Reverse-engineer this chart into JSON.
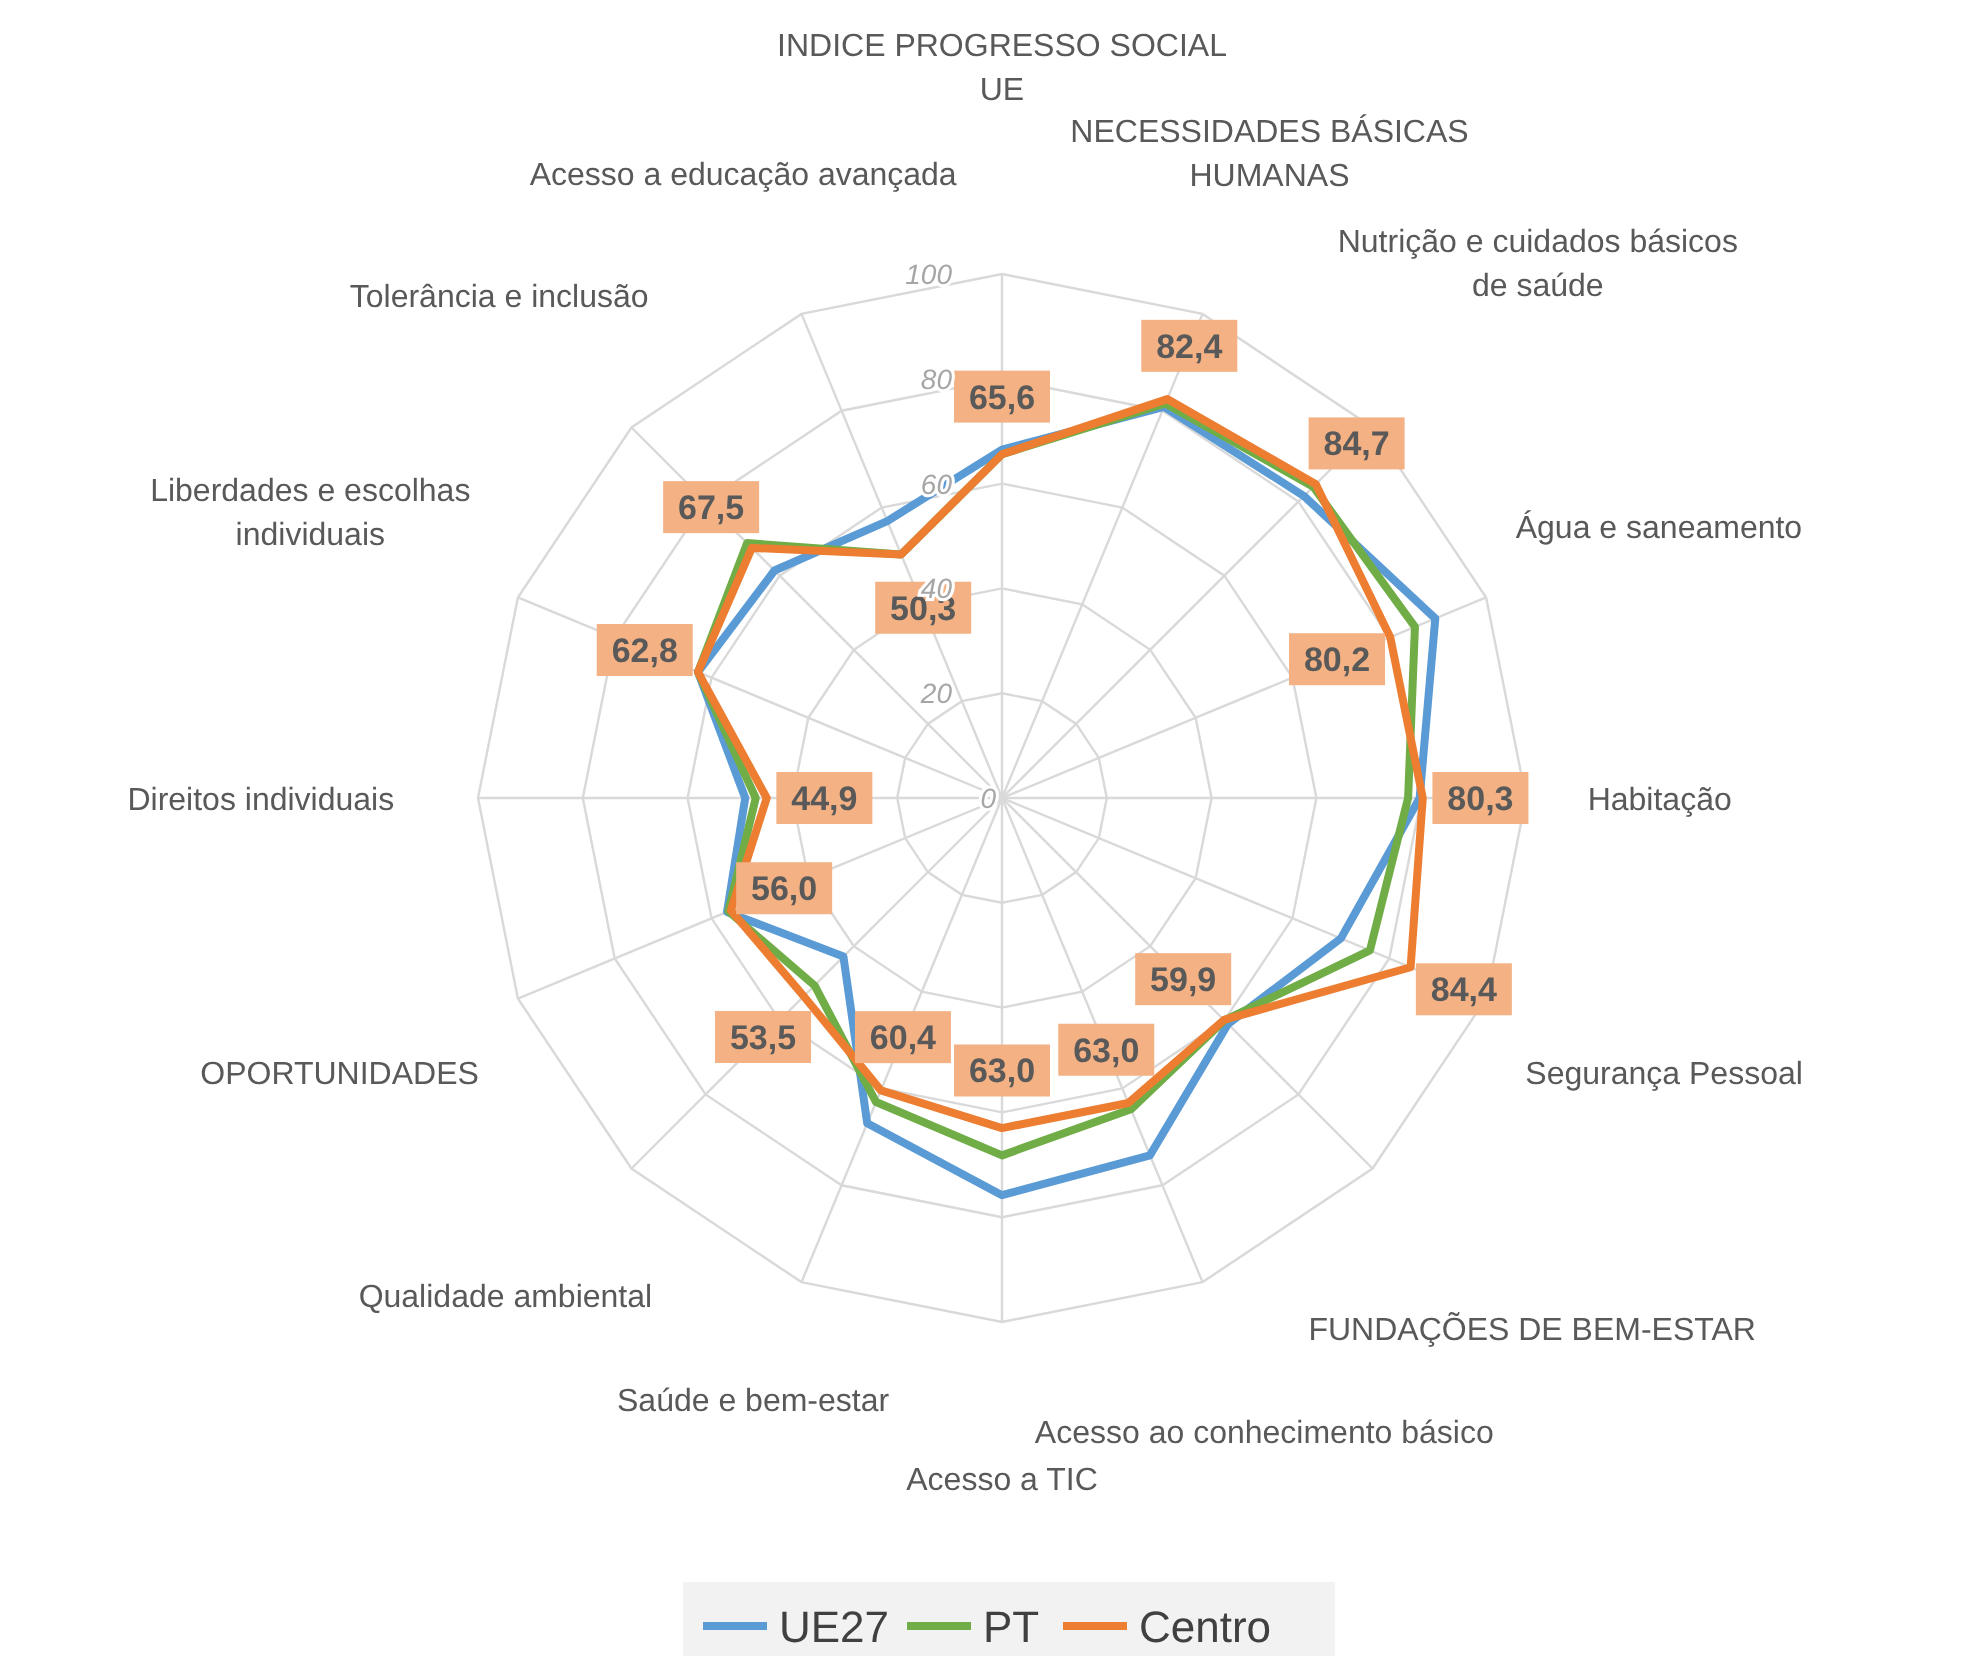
{
  "chart_data": {
    "type": "radar",
    "categories": [
      "INDICE PROGRESSO SOCIAL\nUE",
      "NECESSIDADES BÁSICAS\nHUMANAS",
      "Nutrição e cuidados básicos\nde saúde",
      "Água e saneamento",
      "Habitação",
      "Segurança Pessoal",
      "FUNDAÇÕES DE BEM-ESTAR",
      "Acesso ao conhecimento básico",
      "Acesso a TIC",
      "Saúde e bem-estar",
      "Qualidade ambiental",
      "OPORTUNIDADES",
      "Direitos individuais",
      "Liberdades e escolhas\nindividuais",
      "Tolerância e inclusão",
      "Acesso a educação avançada"
    ],
    "series": [
      {
        "name": "UE27",
        "color": "#5b9bd5",
        "values": [
          66.5,
          80.8,
          81.5,
          89.5,
          79.7,
          70,
          61,
          73.8,
          75.8,
          67.2,
          42.8,
          56.8,
          49,
          62.8,
          61.4,
          57.2
        ]
      },
      {
        "name": "PT",
        "color": "#70ad47",
        "values": [
          65.6,
          81.5,
          84,
          85.3,
          77.5,
          76,
          60,
          64.3,
          68.2,
          62.8,
          50.6,
          56.5,
          47,
          62.8,
          68.8,
          50.3
        ]
      },
      {
        "name": "Centro",
        "color": "#ed7d31",
        "values": [
          65.6,
          82.4,
          84.7,
          80.2,
          80.3,
          84.4,
          59.9,
          63.0,
          63.0,
          60.4,
          53.5,
          56.0,
          44.9,
          62.8,
          67.5,
          50.3
        ],
        "value_labels": [
          "65,6",
          "82,4",
          "84,7",
          "80,2",
          "80,3",
          "84,4",
          "59,9",
          "63,0",
          "63,0",
          "60,4",
          "53,5",
          "56,0",
          "44,9",
          "62,8",
          "67,5",
          "50,3"
        ]
      }
    ],
    "ylim": [
      0,
      100
    ],
    "yticks": [
      0,
      20,
      40,
      60,
      80,
      100
    ],
    "grid": true,
    "legend": "bottom",
    "marker": "none",
    "line_style": "solid"
  }
}
